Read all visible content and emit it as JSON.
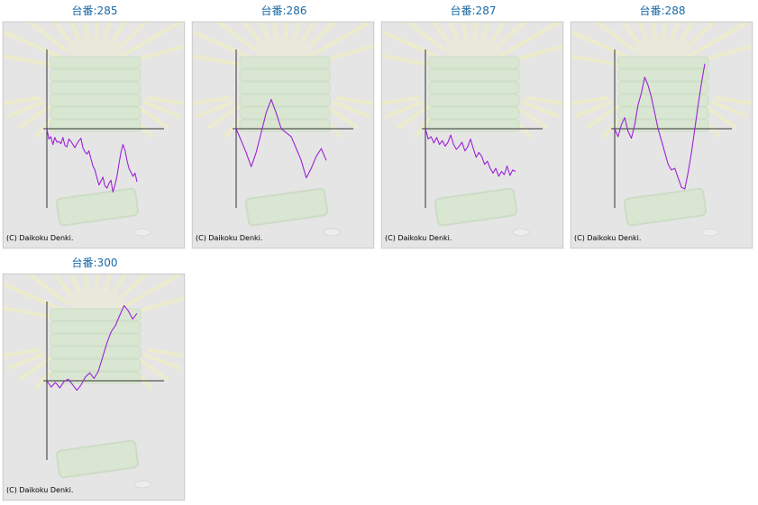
{
  "title_prefix": "台番:",
  "copyright": "(C) Daikoku Denki.",
  "colors": {
    "line": "#9b22d6",
    "axis": "#333333",
    "title": "#1a69a6",
    "panel_bg": "#e5e5e5"
  },
  "chart_data": [
    {
      "type": "line",
      "title": "台番:285",
      "xlabel": "",
      "ylabel": "",
      "ylim": [
        -1,
        1
      ],
      "grid": false,
      "values": [
        0.0,
        -0.13,
        -0.1,
        -0.2,
        -0.11,
        -0.17,
        -0.16,
        -0.19,
        -0.11,
        -0.21,
        -0.23,
        -0.13,
        -0.16,
        -0.2,
        -0.24,
        -0.19,
        -0.15,
        -0.12,
        -0.24,
        -0.29,
        -0.32,
        -0.28,
        -0.38,
        -0.47,
        -0.52,
        -0.62,
        -0.71,
        -0.66,
        -0.61,
        -0.72,
        -0.75,
        -0.69,
        -0.65,
        -0.8,
        -0.71,
        -0.6,
        -0.44,
        -0.3,
        -0.2,
        -0.27,
        -0.4,
        -0.5,
        -0.55,
        -0.6,
        -0.56,
        -0.67
      ]
    },
    {
      "type": "line",
      "title": "台番:286",
      "xlabel": "",
      "ylabel": "",
      "ylim": [
        -1,
        1
      ],
      "grid": false,
      "values": [
        0.0,
        -0.15,
        -0.3,
        -0.48,
        -0.3,
        -0.05,
        0.2,
        0.37,
        0.2,
        0.0,
        -0.05,
        -0.1,
        -0.25,
        -0.4,
        -0.62,
        -0.5,
        -0.35,
        -0.25,
        -0.4
      ]
    },
    {
      "type": "line",
      "title": "台番:287",
      "xlabel": "",
      "ylabel": "",
      "ylim": [
        -1,
        1
      ],
      "grid": false,
      "values": [
        0.0,
        -0.13,
        -0.1,
        -0.18,
        -0.11,
        -0.2,
        -0.15,
        -0.22,
        -0.17,
        -0.08,
        -0.2,
        -0.26,
        -0.22,
        -0.17,
        -0.28,
        -0.23,
        -0.13,
        -0.25,
        -0.36,
        -0.3,
        -0.35,
        -0.45,
        -0.41,
        -0.5,
        -0.56,
        -0.5,
        -0.6,
        -0.54,
        -0.58,
        -0.47,
        -0.59,
        -0.52,
        -0.54
      ]
    },
    {
      "type": "line",
      "title": "台番:288",
      "xlabel": "",
      "ylabel": "",
      "ylim": [
        -1,
        1
      ],
      "grid": false,
      "values": [
        0.0,
        -0.1,
        0.05,
        0.14,
        -0.03,
        -0.12,
        0.05,
        0.3,
        0.45,
        0.65,
        0.55,
        0.4,
        0.2,
        0.0,
        -0.15,
        -0.3,
        -0.45,
        -0.52,
        -0.5,
        -0.62,
        -0.74,
        -0.76,
        -0.55,
        -0.3,
        0.0,
        0.3,
        0.58,
        0.82
      ]
    },
    {
      "type": "line",
      "title": "台番:300",
      "xlabel": "",
      "ylabel": "",
      "ylim": [
        -1,
        1
      ],
      "grid": false,
      "values": [
        0.0,
        -0.08,
        -0.02,
        -0.09,
        -0.01,
        0.02,
        -0.05,
        -0.12,
        -0.05,
        0.05,
        0.1,
        0.03,
        0.12,
        0.3,
        0.48,
        0.62,
        0.7,
        0.83,
        0.95,
        0.88,
        0.78,
        0.85
      ]
    }
  ]
}
